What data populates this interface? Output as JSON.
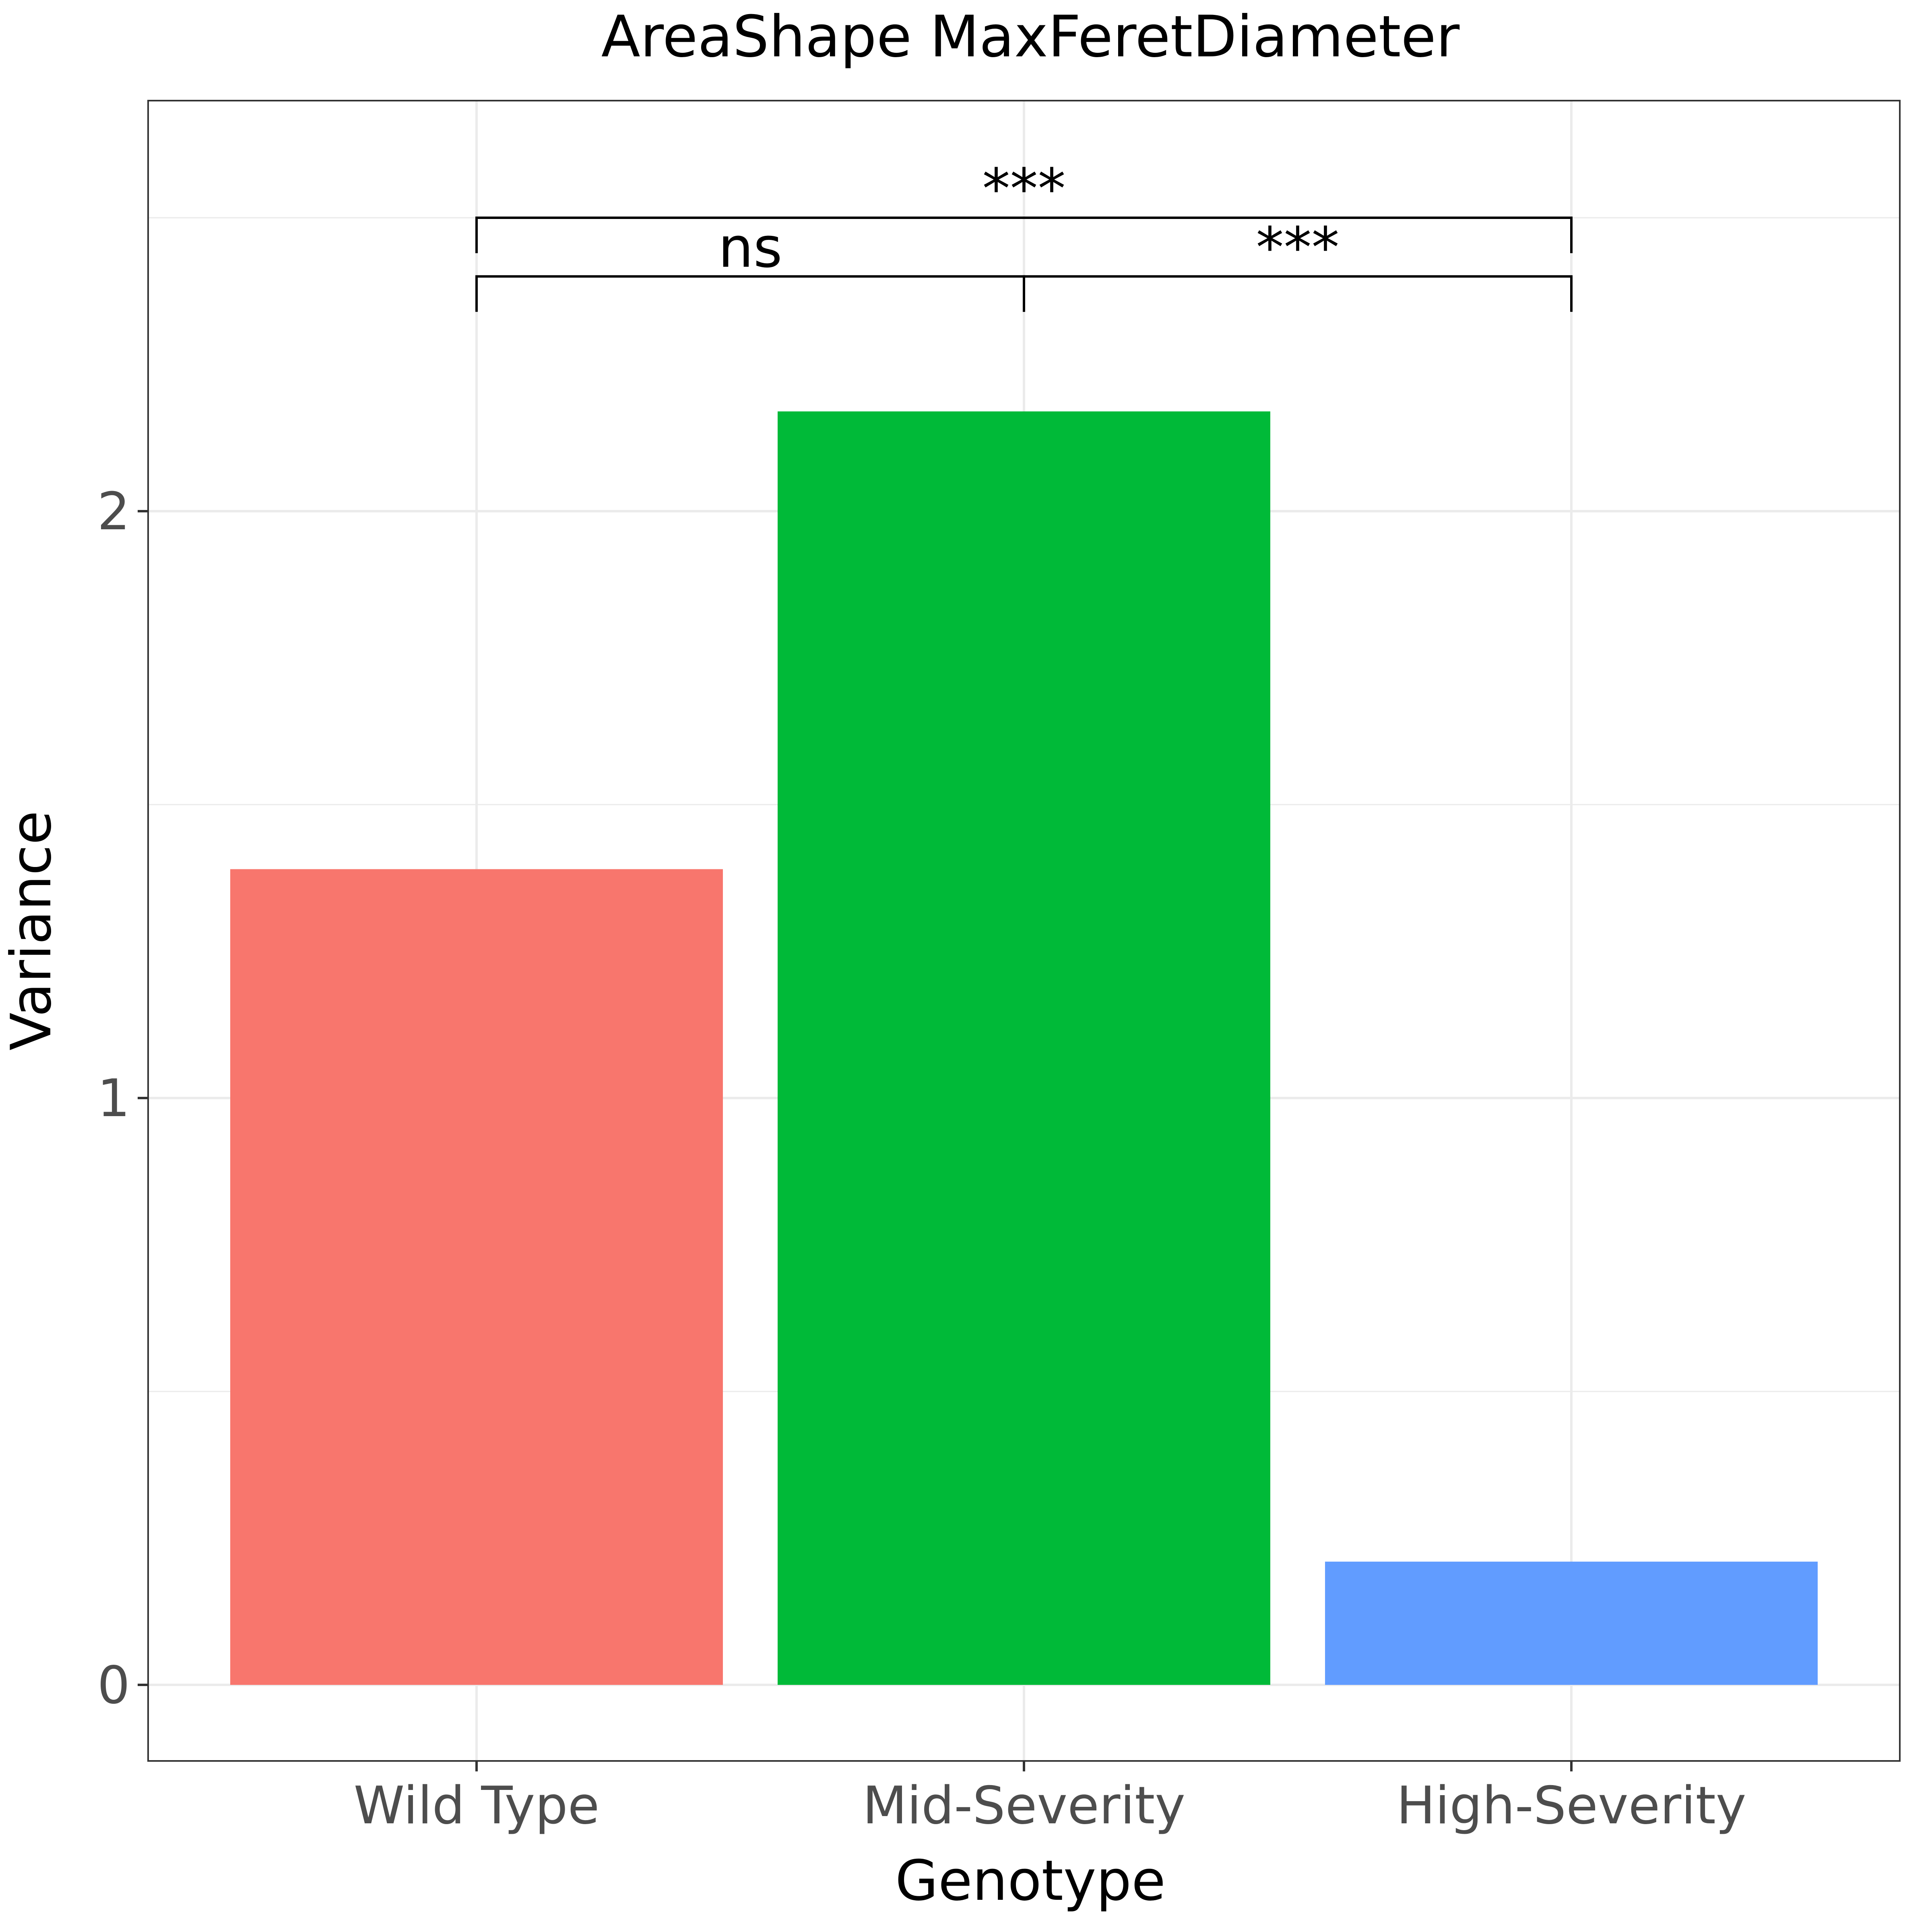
{
  "chart_data": {
    "type": "bar",
    "title": "AreaShape MaxFeretDiameter",
    "xlabel": "Genotype",
    "ylabel": "Variance",
    "categories": [
      "Wild Type",
      "Mid-Severity",
      "High-Severity"
    ],
    "values": [
      1.39,
      2.17,
      0.21
    ],
    "colors": [
      "#F8766D",
      "#00BA38",
      "#619CFF"
    ],
    "ylim": [
      -0.13,
      2.68
    ],
    "yticks": [
      0,
      1,
      2
    ],
    "ytick_labels": [
      "0",
      "1",
      "2"
    ],
    "grid": true,
    "comparisons": [
      {
        "from": 0,
        "to": 1,
        "label": "ns",
        "y": 2.4
      },
      {
        "from": 1,
        "to": 2,
        "label": "***",
        "y": 2.4
      },
      {
        "from": 0,
        "to": 2,
        "label": "***",
        "y": 2.5
      }
    ]
  }
}
